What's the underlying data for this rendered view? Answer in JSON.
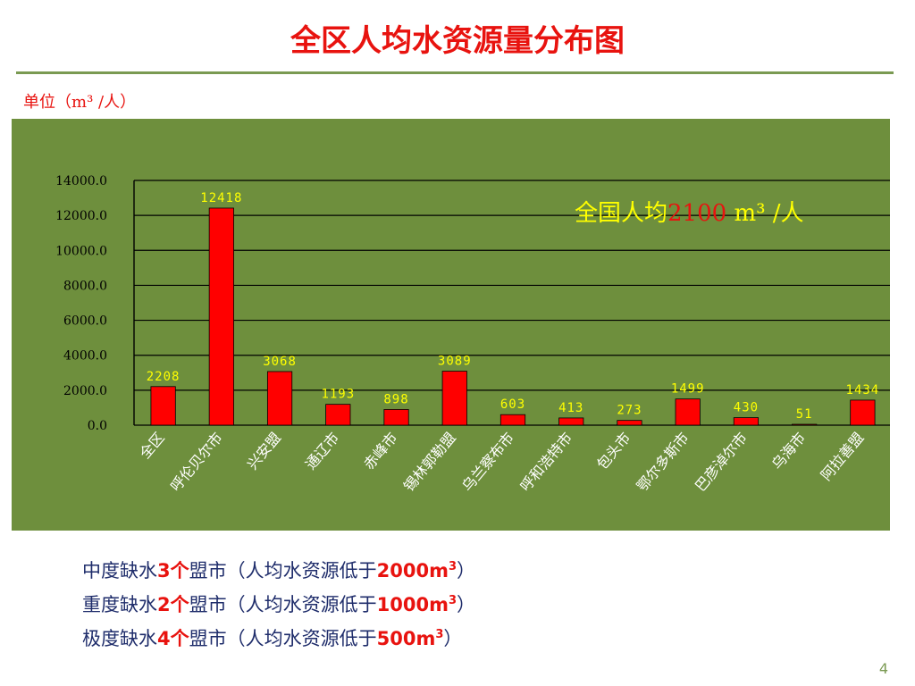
{
  "slide": {
    "title": "全区人均水资源量分布图",
    "unit_label": "单位（m³ /人）",
    "page_number": "4"
  },
  "annotation": {
    "prefix": "全国人均",
    "value": "2100",
    "unit": " m³ /人"
  },
  "notes": [
    {
      "lead": "中度缺水",
      "count": "3个",
      "mid": "盟市（人均水资源低于",
      "threshold": "2000m",
      "sup": "3",
      "tail": "）"
    },
    {
      "lead": "重度缺水",
      "count": "2个",
      "mid": "盟市（人均水资源低于",
      "threshold": "1000m",
      "sup": "3",
      "tail": "）"
    },
    {
      "lead": "极度缺水",
      "count": "4个",
      "mid": "盟市（人均水资源低于",
      "threshold": "500m",
      "sup": "3",
      "tail": "）"
    }
  ],
  "colors": {
    "panel_background": "#6e8f3d",
    "bar_fill": "#ff0000",
    "title": "#e8130f",
    "annotation_text": "#ffff00",
    "notes_text": "#1f2d6b"
  },
  "chart_data": {
    "type": "bar",
    "categories": [
      "全区",
      "呼伦贝尔市",
      "兴安盟",
      "通辽市",
      "赤峰市",
      "锡林郭勒盟",
      "乌兰察布市",
      "呼和浩特市",
      "包头市",
      "鄂尔多斯市",
      "巴彦淖尔市",
      "乌海市",
      "阿拉善盟"
    ],
    "values": [
      2208,
      12418,
      3068,
      1193,
      898,
      3089,
      603,
      413,
      273,
      1499,
      430,
      51,
      1434
    ],
    "data_labels": [
      "2208",
      "12418",
      "3068",
      "1193",
      "898",
      "3089",
      "603",
      "413",
      "273",
      "1499",
      "430",
      "51",
      "1434"
    ],
    "yticks": [
      "0.0",
      "2000.0",
      "4000.0",
      "6000.0",
      "8000.0",
      "10000.0",
      "12000.0",
      "14000.0"
    ],
    "ylim": [
      0,
      14000
    ],
    "grid": true
  }
}
